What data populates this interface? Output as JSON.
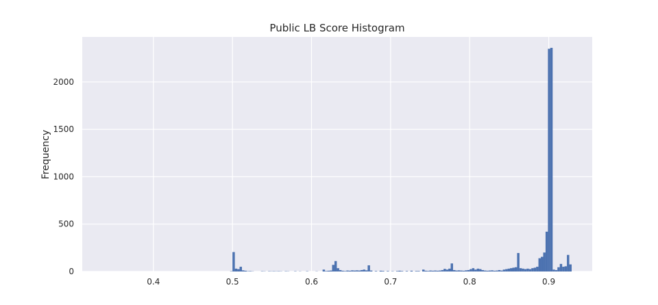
{
  "chart_data": {
    "type": "bar",
    "title": "Public LB Score Histogram",
    "xlabel": "",
    "ylabel": "Frequency",
    "xlim": [
      0.31,
      0.955
    ],
    "ylim": [
      0,
      2475
    ],
    "xticks": [
      0.4,
      0.5,
      0.6,
      0.7,
      0.8,
      0.9
    ],
    "xtick_labels": [
      "0.4",
      "0.5",
      "0.6",
      "0.7",
      "0.8",
      "0.9"
    ],
    "yticks": [
      0,
      500,
      1000,
      1500,
      2000
    ],
    "ytick_labels": [
      "0",
      "500",
      "1000",
      "1500",
      "2000"
    ],
    "grid": true,
    "bar_color": "#4c72b0",
    "background": "#eaeaf2",
    "bin_width": 0.003,
    "bins": [
      [
        0.497,
        3
      ],
      [
        0.5,
        205
      ],
      [
        0.503,
        30
      ],
      [
        0.506,
        25
      ],
      [
        0.509,
        50
      ],
      [
        0.512,
        12
      ],
      [
        0.515,
        8
      ],
      [
        0.518,
        3
      ],
      [
        0.521,
        4
      ],
      [
        0.524,
        2
      ],
      [
        0.536,
        3
      ],
      [
        0.539,
        2
      ],
      [
        0.545,
        3
      ],
      [
        0.548,
        2
      ],
      [
        0.551,
        3
      ],
      [
        0.554,
        2
      ],
      [
        0.557,
        3
      ],
      [
        0.56,
        2
      ],
      [
        0.566,
        3
      ],
      [
        0.569,
        2
      ],
      [
        0.578,
        3
      ],
      [
        0.584,
        2
      ],
      [
        0.593,
        3
      ],
      [
        0.605,
        2
      ],
      [
        0.614,
        20
      ],
      [
        0.617,
        5
      ],
      [
        0.62,
        8
      ],
      [
        0.623,
        10
      ],
      [
        0.626,
        70
      ],
      [
        0.629,
        110
      ],
      [
        0.632,
        35
      ],
      [
        0.635,
        15
      ],
      [
        0.638,
        8
      ],
      [
        0.641,
        5
      ],
      [
        0.644,
        10
      ],
      [
        0.647,
        8
      ],
      [
        0.65,
        12
      ],
      [
        0.653,
        10
      ],
      [
        0.656,
        12
      ],
      [
        0.659,
        10
      ],
      [
        0.662,
        15
      ],
      [
        0.665,
        20
      ],
      [
        0.668,
        12
      ],
      [
        0.671,
        65
      ],
      [
        0.674,
        10
      ],
      [
        0.68,
        5
      ],
      [
        0.686,
        8
      ],
      [
        0.689,
        6
      ],
      [
        0.695,
        5
      ],
      [
        0.701,
        3
      ],
      [
        0.707,
        5
      ],
      [
        0.71,
        8
      ],
      [
        0.713,
        5
      ],
      [
        0.719,
        5
      ],
      [
        0.725,
        8
      ],
      [
        0.731,
        5
      ],
      [
        0.734,
        5
      ],
      [
        0.74,
        20
      ],
      [
        0.743,
        8
      ],
      [
        0.746,
        6
      ],
      [
        0.749,
        10
      ],
      [
        0.752,
        8
      ],
      [
        0.755,
        10
      ],
      [
        0.758,
        8
      ],
      [
        0.761,
        10
      ],
      [
        0.764,
        15
      ],
      [
        0.767,
        28
      ],
      [
        0.77,
        20
      ],
      [
        0.773,
        30
      ],
      [
        0.776,
        85
      ],
      [
        0.779,
        15
      ],
      [
        0.782,
        10
      ],
      [
        0.785,
        12
      ],
      [
        0.788,
        10
      ],
      [
        0.791,
        8
      ],
      [
        0.794,
        12
      ],
      [
        0.797,
        15
      ],
      [
        0.8,
        25
      ],
      [
        0.803,
        35
      ],
      [
        0.806,
        20
      ],
      [
        0.809,
        30
      ],
      [
        0.812,
        25
      ],
      [
        0.815,
        15
      ],
      [
        0.818,
        10
      ],
      [
        0.821,
        8
      ],
      [
        0.824,
        10
      ],
      [
        0.827,
        12
      ],
      [
        0.83,
        8
      ],
      [
        0.833,
        10
      ],
      [
        0.836,
        15
      ],
      [
        0.839,
        10
      ],
      [
        0.842,
        20
      ],
      [
        0.845,
        25
      ],
      [
        0.848,
        30
      ],
      [
        0.851,
        35
      ],
      [
        0.854,
        40
      ],
      [
        0.857,
        45
      ],
      [
        0.86,
        195
      ],
      [
        0.863,
        35
      ],
      [
        0.866,
        30
      ],
      [
        0.869,
        25
      ],
      [
        0.872,
        30
      ],
      [
        0.875,
        25
      ],
      [
        0.878,
        35
      ],
      [
        0.881,
        40
      ],
      [
        0.884,
        50
      ],
      [
        0.887,
        140
      ],
      [
        0.89,
        155
      ],
      [
        0.893,
        200
      ],
      [
        0.896,
        420
      ],
      [
        0.899,
        2350
      ],
      [
        0.902,
        2360
      ],
      [
        0.905,
        20
      ],
      [
        0.908,
        15
      ],
      [
        0.911,
        45
      ],
      [
        0.914,
        80
      ],
      [
        0.917,
        50
      ],
      [
        0.92,
        55
      ],
      [
        0.923,
        175
      ],
      [
        0.926,
        75
      ]
    ]
  }
}
